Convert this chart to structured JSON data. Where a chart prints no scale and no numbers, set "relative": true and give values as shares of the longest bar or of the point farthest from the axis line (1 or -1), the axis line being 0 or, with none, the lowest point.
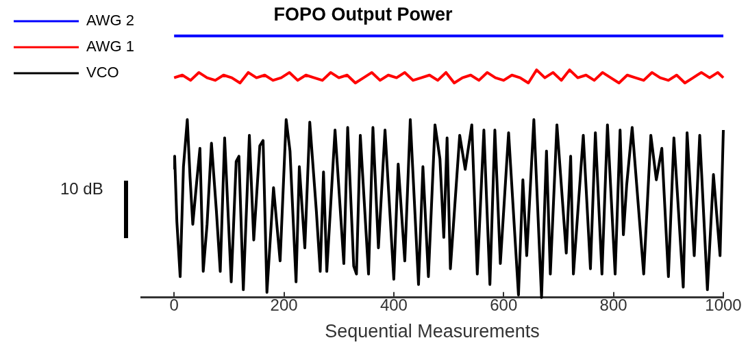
{
  "chart_data": {
    "type": "line",
    "title": "FOPO Output Power",
    "xlabel": "Sequential Measurements",
    "relative": true,
    "legend": "top left",
    "grid": false,
    "marker": "none",
    "line_style": "solid",
    "xlim": [
      -60,
      1000
    ],
    "xticks": [
      0,
      200,
      400,
      600,
      800,
      1000
    ],
    "annotations": [
      "10 dB"
    ],
    "series": [
      {
        "name": "AWG 2",
        "color": "#0000ff",
        "x": [
          0,
          250,
          500,
          750,
          1000
        ],
        "values": [
          1,
          1,
          1,
          1,
          1
        ]
      },
      {
        "name": "AWG 1",
        "color": "#ff0000",
        "x": [
          0,
          15,
          30,
          45,
          60,
          75,
          90,
          105,
          120,
          135,
          150,
          165,
          180,
          195,
          210,
          225,
          240,
          255,
          270,
          285,
          300,
          315,
          330,
          345,
          360,
          375,
          390,
          405,
          420,
          435,
          450,
          465,
          480,
          495,
          510,
          525,
          540,
          555,
          570,
          585,
          600,
          615,
          630,
          645,
          660,
          675,
          690,
          705,
          720,
          735,
          750,
          765,
          780,
          795,
          810,
          825,
          840,
          855,
          870,
          885,
          900,
          915,
          930,
          945,
          960,
          975,
          990,
          1000
        ],
        "values": [
          0.84,
          0.85,
          0.83,
          0.86,
          0.84,
          0.83,
          0.85,
          0.84,
          0.82,
          0.86,
          0.84,
          0.85,
          0.83,
          0.84,
          0.86,
          0.83,
          0.85,
          0.84,
          0.83,
          0.86,
          0.84,
          0.85,
          0.82,
          0.84,
          0.86,
          0.83,
          0.85,
          0.84,
          0.86,
          0.83,
          0.84,
          0.85,
          0.83,
          0.86,
          0.82,
          0.84,
          0.85,
          0.83,
          0.86,
          0.84,
          0.83,
          0.85,
          0.84,
          0.82,
          0.87,
          0.84,
          0.86,
          0.83,
          0.87,
          0.84,
          0.85,
          0.83,
          0.86,
          0.84,
          0.82,
          0.85,
          0.84,
          0.83,
          0.86,
          0.84,
          0.83,
          0.85,
          0.82,
          0.84,
          0.86,
          0.84,
          0.86,
          0.84
        ]
      },
      {
        "name": "VCO",
        "color": "#000000",
        "x": [
          0,
          1,
          5,
          11,
          17,
          24,
          29,
          34,
          41,
          47,
          53,
          60,
          68,
          77,
          84,
          92,
          104,
          113,
          118,
          126,
          137,
          145,
          156,
          162,
          169,
          181,
          193,
          204,
          211,
          222,
          228,
          238,
          247,
          259,
          266,
          272,
          278,
          293,
          309,
          316,
          327,
          332,
          339,
          354,
          362,
          372,
          384,
          400,
          408,
          420,
          430,
          445,
          453,
          463,
          475,
          484,
          491,
          497,
          503,
          520,
          530,
          542,
          552,
          564,
          575,
          584,
          594,
          609,
          627,
          635,
          642,
          655,
          669,
          678,
          685,
          697,
          714,
          722,
          727,
          745,
          758,
          767,
          779,
          789,
          803,
          812,
          818,
          824,
          834,
          855,
          868,
          878,
          888,
          900,
          910,
          927,
          934,
          947,
          957,
          971,
          982,
          994,
          1000
        ],
        "values": [
          0.49,
          0.54,
          0.29,
          0.08,
          0.5,
          0.68,
          0.46,
          0.28,
          0.44,
          0.57,
          0.1,
          0.28,
          0.59,
          0.33,
          0.1,
          0.61,
          0.06,
          0.52,
          0.54,
          0.03,
          0.62,
          0.22,
          0.58,
          0.6,
          0.02,
          0.42,
          0.14,
          0.68,
          0.56,
          0.06,
          0.5,
          0.19,
          0.67,
          0.33,
          0.1,
          0.48,
          0.1,
          0.64,
          0.13,
          0.65,
          0.12,
          0.09,
          0.62,
          0.09,
          0.65,
          0.19,
          0.64,
          0.07,
          0.51,
          0.14,
          0.68,
          0.05,
          0.5,
          0.08,
          0.66,
          0.53,
          0.23,
          0.61,
          0.11,
          0.62,
          0.49,
          0.66,
          0.09,
          0.64,
          0.05,
          0.64,
          0.13,
          0.63,
          0.01,
          0.45,
          0.16,
          0.68,
          0,
          0.56,
          0.09,
          0.66,
          0.17,
          0.54,
          0.09,
          0.62,
          0.11,
          0.63,
          0.09,
          0.66,
          0.09,
          0.64,
          0.24,
          0.43,
          0.65,
          0.09,
          0.62,
          0.45,
          0.57,
          0.08,
          0.61,
          0.04,
          0.63,
          0.16,
          0.62,
          0.03,
          0.47,
          0.16,
          0.64
        ]
      }
    ]
  }
}
